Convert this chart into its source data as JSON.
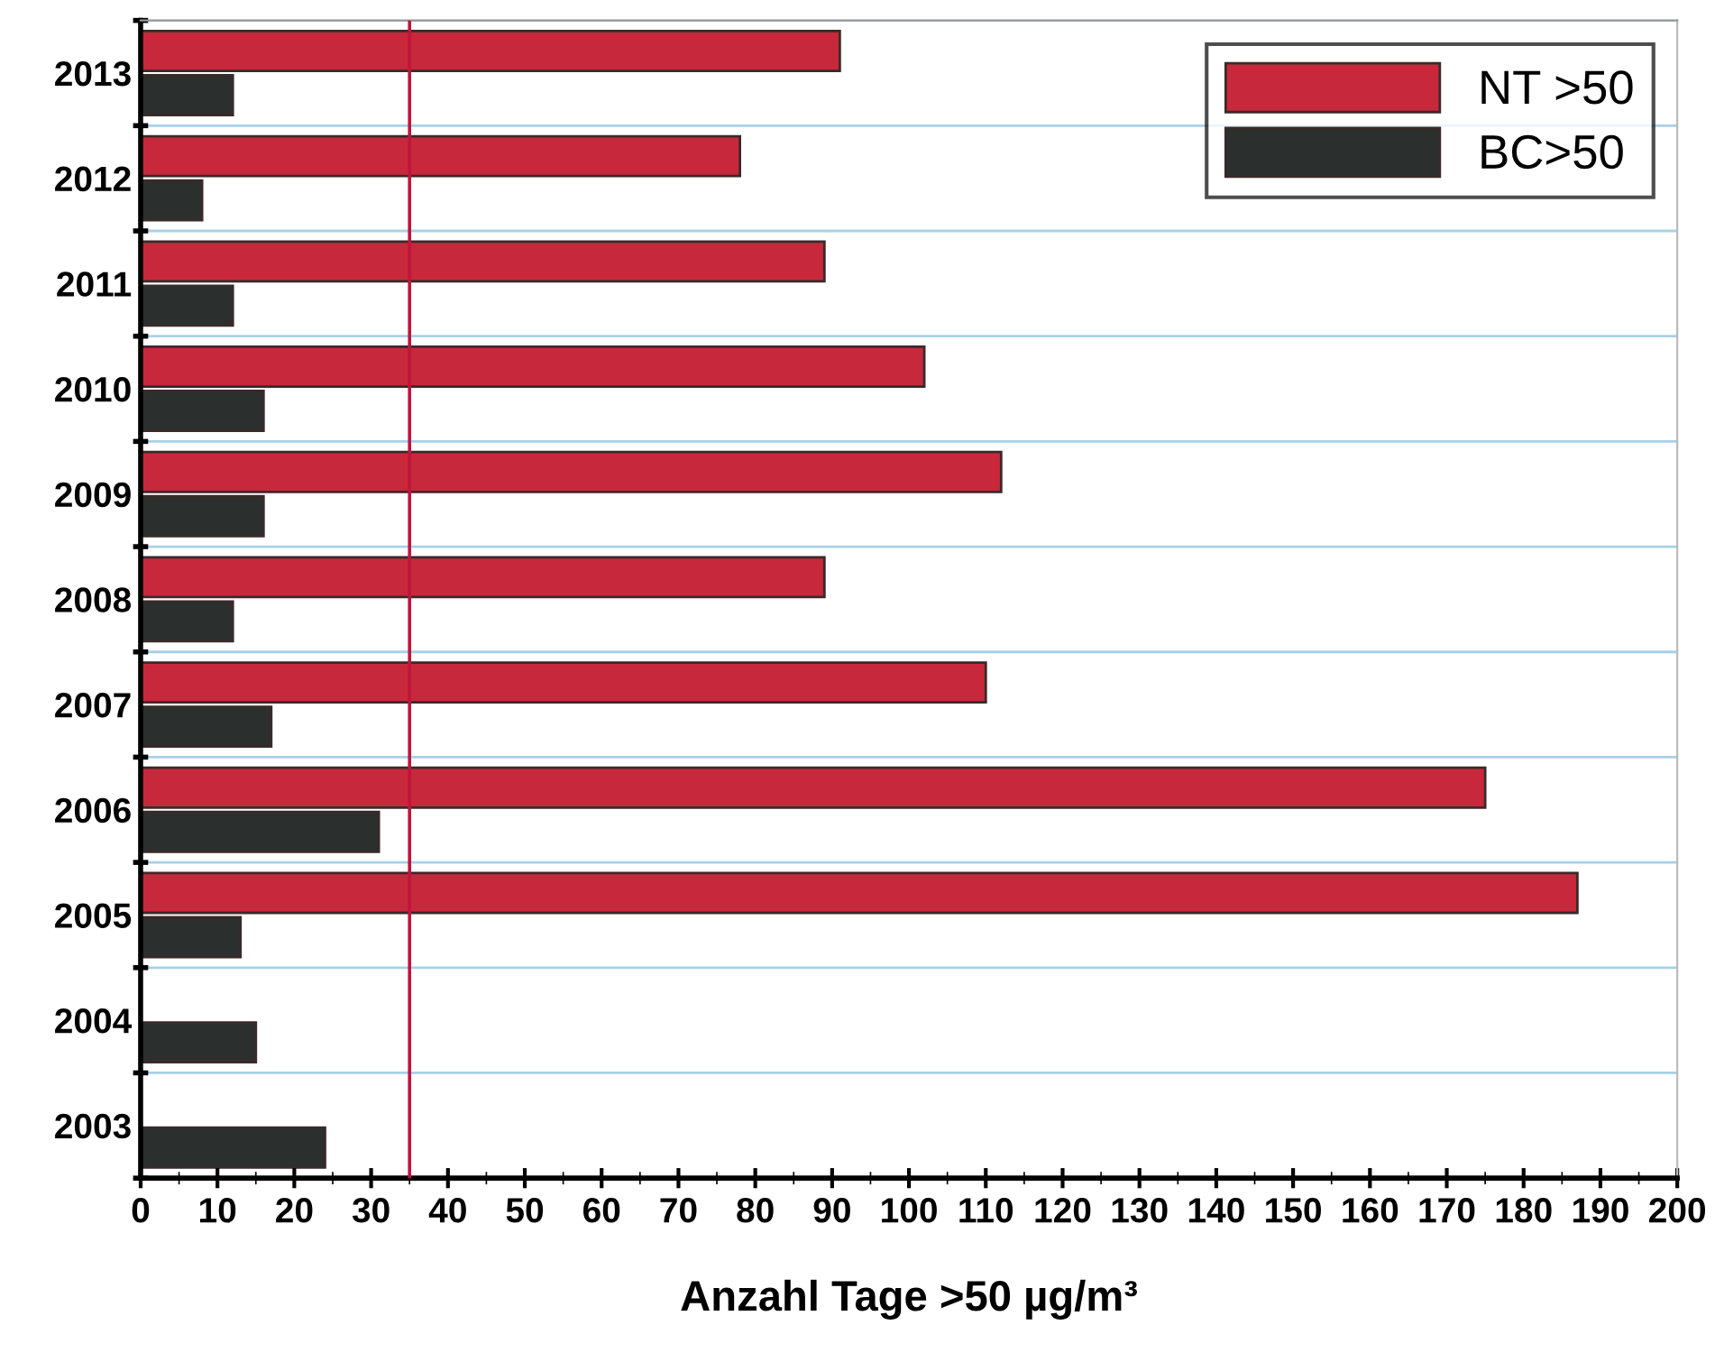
{
  "chart_data": {
    "type": "bar",
    "orientation": "horizontal",
    "xlabel": "Anzahl Tage >50 µg/m³",
    "categories": [
      "2013",
      "2012",
      "2011",
      "2010",
      "2009",
      "2008",
      "2007",
      "2006",
      "2005",
      "2004",
      "2003"
    ],
    "series": [
      {
        "name": "NT >50",
        "color": "#c8283c",
        "values": [
          91,
          78,
          89,
          102,
          112,
          89,
          110,
          175,
          187,
          null,
          null
        ]
      },
      {
        "name": "BC>50",
        "color": "#2b2f2e",
        "values": [
          12,
          8,
          12,
          16,
          16,
          12,
          17,
          31,
          13,
          15,
          24
        ]
      }
    ],
    "xlim": [
      0,
      200
    ],
    "xticks": [
      0,
      10,
      20,
      30,
      40,
      50,
      60,
      70,
      80,
      90,
      100,
      110,
      120,
      130,
      140,
      150,
      160,
      170,
      180,
      190,
      200
    ],
    "ref_lines": [
      {
        "axis": "x",
        "value": 35,
        "color": "#c0143c"
      }
    ],
    "grid": "y",
    "legend": "top right"
  }
}
